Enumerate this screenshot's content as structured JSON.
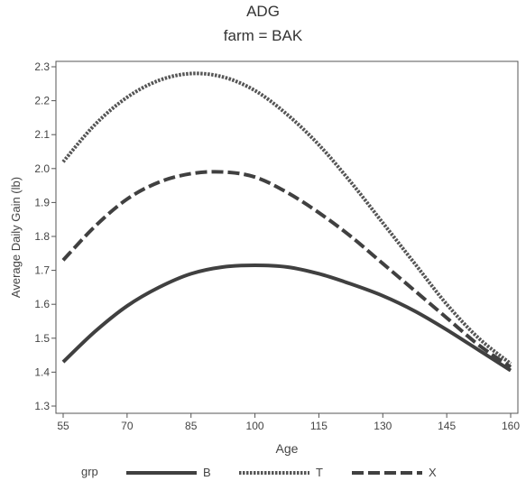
{
  "header": {
    "title": "ADG",
    "subtitle": "farm = BAK"
  },
  "chart_data": {
    "type": "line",
    "title": "ADG",
    "subtitle": "farm = BAK",
    "xlabel": "Age",
    "ylabel": "Average Daily Gain (lb)",
    "xlim": [
      55,
      160
    ],
    "ylim": [
      1.3,
      2.3
    ],
    "xticks": [
      55,
      70,
      85,
      100,
      115,
      130,
      145,
      160
    ],
    "yticks": [
      "1.3",
      "1.4",
      "1.5",
      "1.6",
      "1.7",
      "1.8",
      "1.9",
      "2.0",
      "2.1",
      "2.2",
      "2.3"
    ],
    "grid": false,
    "legend_title": "grp",
    "legend_position": "bottom",
    "series": [
      {
        "name": "B",
        "style": "solid",
        "color": "#404040",
        "x": [
          55,
          62.5,
          70,
          77.5,
          85,
          92.5,
          100,
          107.5,
          115,
          122.5,
          130,
          137.5,
          145,
          152.5,
          160
        ],
        "y": [
          1.43,
          1.52,
          1.595,
          1.65,
          1.69,
          1.71,
          1.715,
          1.71,
          1.69,
          1.66,
          1.625,
          1.58,
          1.525,
          1.465,
          1.405
        ]
      },
      {
        "name": "T",
        "style": "dotted",
        "color": "#555555",
        "x": [
          55,
          62.5,
          70,
          77.5,
          85,
          92.5,
          100,
          107.5,
          115,
          122.5,
          130,
          137.5,
          145,
          152.5,
          160
        ],
        "y": [
          2.02,
          2.13,
          2.21,
          2.26,
          2.28,
          2.27,
          2.23,
          2.16,
          2.07,
          1.96,
          1.84,
          1.72,
          1.6,
          1.5,
          1.425
        ]
      },
      {
        "name": "X",
        "style": "dashed",
        "color": "#404040",
        "x": [
          55,
          62.5,
          70,
          77.5,
          85,
          92.5,
          100,
          107.5,
          115,
          122.5,
          130,
          137.5,
          145,
          152.5,
          160
        ],
        "y": [
          1.73,
          1.83,
          1.91,
          1.96,
          1.985,
          1.99,
          1.975,
          1.93,
          1.87,
          1.8,
          1.72,
          1.64,
          1.56,
          1.48,
          1.415
        ]
      }
    ]
  }
}
